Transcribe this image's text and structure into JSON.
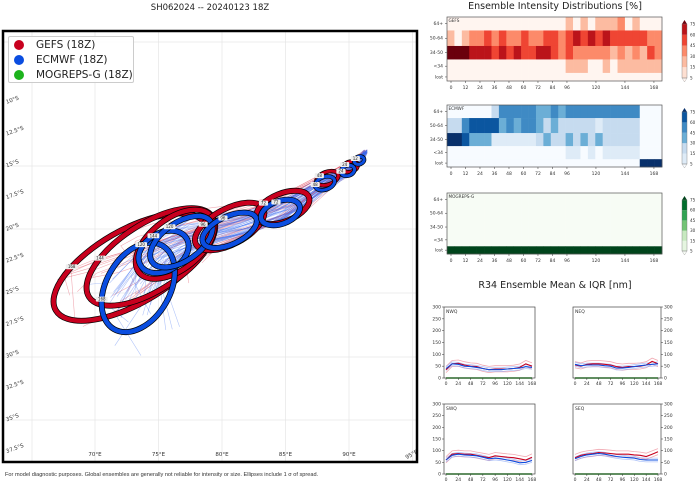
{
  "main_title": "SH062024 -- 20240123 18Z",
  "intensity_title": "Ensemble Intensity Distributions [%]",
  "r34_title": "R34 Ensemble Mean & IQR [nm]",
  "footer": "For model diagnostic purposes. Global ensembles are generally not reliable for intensity or size. Ellipses include 1 σ of spread.",
  "legend": [
    {
      "label": "GEFS (18Z)",
      "color": "#c8001e"
    },
    {
      "label": "ECMWF (18Z)",
      "color": "#0a4de0"
    },
    {
      "label": "MOGREPS-G (18Z)",
      "color": "#1db31d"
    }
  ],
  "chart_data": [
    {
      "type": "map",
      "lon_ticks": [
        "70°E",
        "75°E",
        "80°E",
        "85°E",
        "90°E",
        "95°E"
      ],
      "lon_values": [
        70,
        75,
        80,
        85,
        90,
        95
      ],
      "lat_ticks": [
        "10°S",
        "12.5°S",
        "15°S",
        "17.5°S",
        "20°S",
        "22.5°S",
        "25°S",
        "27.5°S",
        "30°S",
        "32.5°S",
        "35°S",
        "37.5°S"
      ],
      "lat_values": [
        10,
        12.5,
        15,
        17.5,
        20,
        22.5,
        25,
        27.5,
        30,
        32.5,
        35,
        37.5
      ],
      "start": {
        "lon": 91.3,
        "lat": 13.9
      },
      "ellipses": [
        {
          "model": "GEFS",
          "hour": "168",
          "lon": 72.8,
          "lat": 23.0,
          "a": 6.8,
          "b": 2.9,
          "angle": -30
        },
        {
          "model": "GEFS",
          "hour": "144",
          "lon": 74.4,
          "lat": 22.2,
          "a": 5.8,
          "b": 2.6,
          "angle": -33
        },
        {
          "model": "GEFS",
          "hour": "120",
          "lon": 76.3,
          "lat": 21.2,
          "a": 3.6,
          "b": 2.0,
          "angle": -38
        },
        {
          "model": "GEFS",
          "hour": "96",
          "lon": 80.6,
          "lat": 19.8,
          "a": 3.0,
          "b": 1.4,
          "angle": -28
        },
        {
          "model": "GEFS",
          "hour": "72",
          "lon": 84.8,
          "lat": 18.3,
          "a": 2.2,
          "b": 1.1,
          "angle": -22
        },
        {
          "model": "GEFS",
          "hour": "48",
          "lon": 88.3,
          "lat": 16.0,
          "a": 0.9,
          "b": 0.5,
          "angle": -20
        },
        {
          "model": "GEFS",
          "hour": "24",
          "lon": 90.1,
          "lat": 15.1,
          "a": 0.6,
          "b": 0.4,
          "angle": -20
        },
        {
          "model": "ECMWF",
          "hour": "168",
          "lon": 73.4,
          "lat": 24.6,
          "a": 3.8,
          "b": 2.5,
          "angle": -60
        },
        {
          "model": "ECMWF",
          "hour": "144",
          "lon": 75.4,
          "lat": 21.8,
          "a": 2.1,
          "b": 1.5,
          "angle": -30
        },
        {
          "model": "ECMWF",
          "hour": "120",
          "lon": 76.8,
          "lat": 21.0,
          "a": 2.8,
          "b": 1.5,
          "angle": -35
        },
        {
          "model": "ECMWF",
          "hour": "96",
          "lon": 80.6,
          "lat": 20.1,
          "a": 2.3,
          "b": 1.1,
          "angle": -25
        },
        {
          "model": "ECMWF",
          "hour": "72",
          "lon": 84.6,
          "lat": 18.7,
          "a": 1.6,
          "b": 0.9,
          "angle": -20
        },
        {
          "model": "ECMWF",
          "hour": "48",
          "lon": 88.1,
          "lat": 16.4,
          "a": 0.8,
          "b": 0.5,
          "angle": -20
        },
        {
          "model": "ECMWF",
          "hour": "24",
          "lon": 89.9,
          "lat": 15.4,
          "a": 0.55,
          "b": 0.4,
          "angle": -20
        },
        {
          "model": "ECMWF",
          "hour": "12",
          "lon": 90.8,
          "lat": 14.6,
          "a": 0.4,
          "b": 0.3,
          "angle": -20
        }
      ]
    },
    {
      "type": "heatmap",
      "rows": [
        "64+",
        "50-64",
        "34-50",
        "<34",
        "lost"
      ],
      "x_ticks": [
        0,
        12,
        24,
        36,
        48,
        60,
        72,
        84,
        96,
        120,
        144,
        168
      ],
      "hours": [
        0,
        6,
        12,
        18,
        24,
        30,
        36,
        42,
        48,
        54,
        60,
        66,
        72,
        78,
        84,
        90,
        96,
        102,
        108,
        114,
        120,
        126,
        132,
        138,
        144,
        150,
        156,
        162,
        168
      ],
      "colorbar_ticks": [
        5,
        15,
        30,
        45,
        60,
        75
      ],
      "panels": [
        {
          "name": "GEFS",
          "colormap": "Reds",
          "values": [
            [
              0,
              0,
              0,
              0,
              0,
              0,
              0,
              0,
              0,
              0,
              0,
              0,
              0,
              0,
              0,
              0,
              15,
              0,
              15,
              0,
              15,
              15,
              15,
              30,
              0,
              15,
              0,
              0,
              0
            ],
            [
              15,
              0,
              15,
              30,
              30,
              45,
              30,
              45,
              30,
              30,
              45,
              30,
              30,
              45,
              45,
              30,
              45,
              60,
              45,
              60,
              45,
              60,
              45,
              45,
              45,
              45,
              45,
              30,
              30
            ],
            [
              75,
              75,
              75,
              60,
              60,
              60,
              45,
              60,
              45,
              60,
              45,
              45,
              60,
              60,
              45,
              30,
              45,
              30,
              30,
              30,
              30,
              30,
              15,
              30,
              15,
              30,
              15,
              45,
              30
            ],
            [
              0,
              0,
              0,
              0,
              0,
              0,
              0,
              0,
              0,
              0,
              0,
              0,
              0,
              0,
              0,
              0,
              15,
              15,
              15,
              0,
              0,
              15,
              0,
              15,
              15,
              20,
              20,
              20,
              20
            ],
            [
              0,
              0,
              0,
              0,
              0,
              0,
              0,
              0,
              0,
              0,
              0,
              0,
              0,
              0,
              0,
              0,
              0,
              0,
              0,
              0,
              0,
              0,
              0,
              0,
              0,
              0,
              0,
              0,
              0
            ]
          ]
        },
        {
          "name": "ECMWF",
          "colormap": "Blues",
          "values": [
            [
              0,
              0,
              0,
              0,
              0,
              0,
              15,
              45,
              45,
              45,
              45,
              45,
              30,
              30,
              45,
              30,
              45,
              45,
              45,
              45,
              45,
              45,
              45,
              45,
              45,
              45,
              0,
              0,
              0
            ],
            [
              20,
              20,
              45,
              60,
              60,
              60,
              60,
              30,
              45,
              30,
              45,
              45,
              30,
              15,
              30,
              20,
              20,
              20,
              20,
              20,
              10,
              20,
              20,
              20,
              20,
              20,
              0,
              0,
              0
            ],
            [
              75,
              75,
              60,
              30,
              30,
              30,
              10,
              10,
              10,
              10,
              10,
              10,
              20,
              30,
              20,
              20,
              30,
              20,
              30,
              20,
              30,
              20,
              20,
              20,
              20,
              20,
              0,
              0,
              0
            ],
            [
              0,
              0,
              0,
              0,
              0,
              0,
              0,
              0,
              0,
              0,
              0,
              0,
              0,
              0,
              0,
              0,
              10,
              10,
              0,
              10,
              0,
              10,
              10,
              10,
              10,
              10,
              0,
              0,
              0
            ],
            [
              0,
              0,
              0,
              0,
              0,
              0,
              0,
              0,
              0,
              0,
              0,
              0,
              0,
              0,
              0,
              0,
              0,
              0,
              0,
              0,
              0,
              0,
              0,
              0,
              0,
              0,
              75,
              75,
              75
            ]
          ]
        },
        {
          "name": "MOGREPS-G",
          "colormap": "Greens",
          "values": [
            [
              0,
              0,
              0,
              0,
              0,
              0,
              0,
              0,
              0,
              0,
              0,
              0,
              0,
              0,
              0,
              0,
              0,
              0,
              0,
              0,
              0,
              0,
              0,
              0,
              0,
              0,
              0,
              0,
              0
            ],
            [
              0,
              0,
              0,
              0,
              0,
              0,
              0,
              0,
              0,
              0,
              0,
              0,
              0,
              0,
              0,
              0,
              0,
              0,
              0,
              0,
              0,
              0,
              0,
              0,
              0,
              0,
              0,
              0,
              0
            ],
            [
              0,
              0,
              0,
              0,
              0,
              0,
              0,
              0,
              0,
              0,
              0,
              0,
              0,
              0,
              0,
              0,
              0,
              0,
              0,
              0,
              0,
              0,
              0,
              0,
              0,
              0,
              0,
              0,
              0
            ],
            [
              0,
              0,
              0,
              0,
              0,
              0,
              0,
              0,
              0,
              0,
              0,
              0,
              0,
              0,
              0,
              0,
              0,
              0,
              0,
              0,
              0,
              0,
              0,
              0,
              0,
              0,
              0,
              0,
              0
            ],
            [
              75,
              75,
              75,
              75,
              75,
              75,
              75,
              75,
              75,
              75,
              75,
              75,
              75,
              75,
              75,
              75,
              75,
              75,
              75,
              75,
              75,
              75,
              75,
              75,
              75,
              75,
              75,
              75,
              75
            ]
          ]
        }
      ]
    },
    {
      "type": "line",
      "x": [
        0,
        12,
        24,
        36,
        48,
        60,
        72,
        84,
        96,
        108,
        120,
        132,
        144,
        156,
        168
      ],
      "x_ticks": [
        0,
        24,
        48,
        72,
        96,
        120,
        144,
        168
      ],
      "y_ticks": [
        0,
        50,
        100,
        150,
        200,
        250,
        300
      ],
      "ylim": [
        0,
        300
      ],
      "panels": [
        {
          "name": "NWQ",
          "gefs": [
            35,
            60,
            62,
            55,
            50,
            48,
            40,
            35,
            38,
            38,
            38,
            40,
            45,
            60,
            50
          ],
          "ecmwf": [
            40,
            60,
            58,
            50,
            48,
            45,
            40,
            35,
            35,
            35,
            38,
            40,
            42,
            48,
            45
          ],
          "mogreps": [
            0,
            0,
            0,
            0,
            0,
            0,
            0,
            0,
            0,
            0,
            0,
            0,
            0,
            0,
            0
          ]
        },
        {
          "name": "NEQ",
          "gefs": [
            55,
            50,
            58,
            60,
            60,
            58,
            55,
            48,
            45,
            48,
            48,
            50,
            55,
            70,
            60
          ],
          "ecmwf": [
            58,
            52,
            55,
            55,
            55,
            52,
            50,
            42,
            42,
            45,
            48,
            52,
            55,
            58,
            60
          ],
          "mogreps": [
            0,
            0,
            0,
            0,
            0,
            0,
            0,
            0,
            0,
            0,
            0,
            0,
            0,
            0,
            0
          ]
        },
        {
          "name": "SWQ",
          "gefs": [
            60,
            85,
            88,
            85,
            85,
            80,
            75,
            70,
            78,
            75,
            72,
            70,
            65,
            60,
            72
          ],
          "ecmwf": [
            60,
            80,
            85,
            82,
            80,
            78,
            72,
            65,
            68,
            65,
            60,
            55,
            48,
            50,
            58
          ],
          "mogreps": [
            0,
            0,
            0,
            0,
            0,
            0,
            0,
            0,
            0,
            0,
            0,
            0,
            0,
            0,
            0
          ]
        },
        {
          "name": "SEQ",
          "gefs": [
            70,
            80,
            85,
            88,
            92,
            90,
            88,
            85,
            85,
            85,
            82,
            80,
            75,
            85,
            95
          ],
          "ecmwf": [
            65,
            75,
            82,
            85,
            88,
            85,
            80,
            75,
            72,
            70,
            68,
            62,
            60,
            60,
            60
          ],
          "mogreps": [
            0,
            0,
            0,
            0,
            0,
            0,
            0,
            0,
            0,
            0,
            0,
            0,
            0,
            0,
            0
          ]
        }
      ]
    }
  ]
}
